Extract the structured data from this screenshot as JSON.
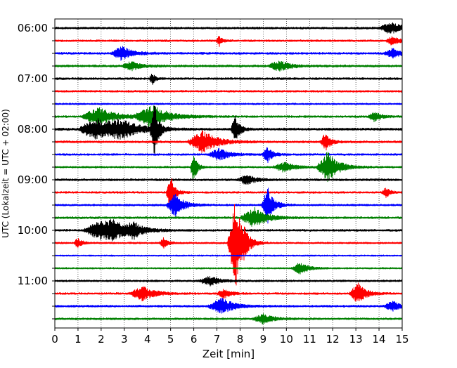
{
  "chart_data": {
    "type": "line",
    "subtype": "helicorder",
    "xlabel": "Zeit  [min]",
    "ylabel": "UTC (Lokalzeit = UTC + 02:00)",
    "xlim": [
      0,
      15
    ],
    "x_ticks": [
      0,
      1,
      2,
      3,
      4,
      5,
      6,
      7,
      8,
      9,
      10,
      11,
      12,
      13,
      14,
      15
    ],
    "x_tick_labels": [
      "0",
      "1",
      "2",
      "3",
      "4",
      "5",
      "6",
      "7",
      "8",
      "9",
      "10",
      "11",
      "12",
      "13",
      "14",
      "15"
    ],
    "grid": "vertical dotted lines at each minute",
    "y_tick_labels": [
      "06:00",
      "07:00",
      "08:00",
      "09:00",
      "10:00",
      "11:00"
    ],
    "line_interval_minutes": 15,
    "color_cycle": [
      "#000000",
      "#ff0000",
      "#0000ff",
      "#008000"
    ],
    "traces": [
      {
        "start": "06:00",
        "color": "#000000",
        "noise": 0.6,
        "events": [
          {
            "t": 14.5,
            "amp": 1.2,
            "dur": 0.5
          }
        ]
      },
      {
        "start": "06:15",
        "color": "#ff0000",
        "noise": 0.55,
        "events": [
          {
            "t": 7.1,
            "amp": 1.1,
            "dur": 0.15
          },
          {
            "t": 14.6,
            "amp": 1.0,
            "dur": 0.3
          }
        ]
      },
      {
        "start": "06:30",
        "color": "#0000ff",
        "noise": 0.6,
        "events": [
          {
            "t": 2.9,
            "amp": 1.4,
            "dur": 0.5
          },
          {
            "t": 14.6,
            "amp": 1.0,
            "dur": 0.4
          }
        ]
      },
      {
        "start": "06:45",
        "color": "#008000",
        "noise": 0.65,
        "events": [
          {
            "t": 3.3,
            "amp": 1.0,
            "dur": 0.4
          },
          {
            "t": 9.7,
            "amp": 1.0,
            "dur": 0.5
          }
        ]
      },
      {
        "start": "07:00",
        "color": "#000000",
        "noise": 0.6,
        "events": [
          {
            "t": 4.2,
            "amp": 1.4,
            "dur": 0.12
          }
        ]
      },
      {
        "start": "07:15",
        "color": "#ff0000",
        "noise": 0.55,
        "events": []
      },
      {
        "start": "07:30",
        "color": "#0000ff",
        "noise": 0.45,
        "events": []
      },
      {
        "start": "07:45",
        "color": "#008000",
        "noise": 0.6,
        "events": [
          {
            "t": 1.9,
            "amp": 1.8,
            "dur": 0.8
          },
          {
            "t": 4.2,
            "amp": 2.2,
            "dur": 0.8
          },
          {
            "t": 13.8,
            "amp": 1.0,
            "dur": 0.3
          }
        ]
      },
      {
        "start": "08:00",
        "color": "#000000",
        "noise": 0.7,
        "events": [
          {
            "t": 1.8,
            "amp": 2.2,
            "dur": 0.8
          },
          {
            "t": 2.9,
            "amp": 1.6,
            "dur": 0.9
          },
          {
            "t": 4.3,
            "amp": 5.0,
            "dur": 0.2
          },
          {
            "t": 7.8,
            "amp": 3.2,
            "dur": 0.2
          }
        ]
      },
      {
        "start": "08:15",
        "color": "#ff0000",
        "noise": 0.6,
        "events": [
          {
            "t": 6.4,
            "amp": 2.2,
            "dur": 0.7
          },
          {
            "t": 11.7,
            "amp": 1.8,
            "dur": 0.25
          }
        ]
      },
      {
        "start": "08:30",
        "color": "#0000ff",
        "noise": 0.55,
        "events": [
          {
            "t": 7.1,
            "amp": 1.2,
            "dur": 0.5
          },
          {
            "t": 9.2,
            "amp": 1.5,
            "dur": 0.25
          }
        ]
      },
      {
        "start": "08:45",
        "color": "#008000",
        "noise": 0.55,
        "events": [
          {
            "t": 6.0,
            "amp": 3.5,
            "dur": 0.15
          },
          {
            "t": 9.9,
            "amp": 1.0,
            "dur": 0.5
          },
          {
            "t": 11.8,
            "amp": 3.2,
            "dur": 0.5
          }
        ]
      },
      {
        "start": "09:00",
        "color": "#000000",
        "noise": 0.6,
        "events": [
          {
            "t": 8.3,
            "amp": 1.0,
            "dur": 0.4
          }
        ]
      },
      {
        "start": "09:15",
        "color": "#ff0000",
        "noise": 0.55,
        "events": [
          {
            "t": 5.0,
            "amp": 3.8,
            "dur": 0.2
          },
          {
            "t": 14.3,
            "amp": 1.0,
            "dur": 0.2
          }
        ]
      },
      {
        "start": "09:30",
        "color": "#0000ff",
        "noise": 0.55,
        "events": [
          {
            "t": 5.2,
            "amp": 2.5,
            "dur": 0.4
          },
          {
            "t": 9.2,
            "amp": 3.5,
            "dur": 0.3
          }
        ]
      },
      {
        "start": "09:45",
        "color": "#008000",
        "noise": 0.6,
        "events": [
          {
            "t": 8.6,
            "amp": 2.0,
            "dur": 0.6
          }
        ]
      },
      {
        "start": "10:00",
        "color": "#000000",
        "noise": 0.6,
        "events": [
          {
            "t": 1.8,
            "amp": 1.4,
            "dur": 0.6
          },
          {
            "t": 2.5,
            "amp": 1.8,
            "dur": 0.9
          },
          {
            "t": 3.4,
            "amp": 1.2,
            "dur": 0.4
          }
        ]
      },
      {
        "start": "10:15",
        "color": "#ff0000",
        "noise": 0.5,
        "events": [
          {
            "t": 1.0,
            "amp": 1.0,
            "dur": 0.2
          },
          {
            "t": 4.7,
            "amp": 1.0,
            "dur": 0.2
          },
          {
            "t": 7.8,
            "amp": 9.5,
            "dur": 0.35
          },
          {
            "t": 8.2,
            "amp": 1.6,
            "dur": 0.15
          }
        ]
      },
      {
        "start": "10:30",
        "color": "#0000ff",
        "noise": 0.4,
        "events": []
      },
      {
        "start": "10:45",
        "color": "#008000",
        "noise": 0.45,
        "events": [
          {
            "t": 10.6,
            "amp": 1.2,
            "dur": 0.4
          }
        ]
      },
      {
        "start": "11:00",
        "color": "#000000",
        "noise": 0.55,
        "events": [
          {
            "t": 6.7,
            "amp": 0.9,
            "dur": 0.5
          }
        ]
      },
      {
        "start": "11:15",
        "color": "#ff0000",
        "noise": 0.55,
        "events": [
          {
            "t": 3.8,
            "amp": 1.4,
            "dur": 0.6
          },
          {
            "t": 7.3,
            "amp": 1.0,
            "dur": 0.3
          },
          {
            "t": 13.1,
            "amp": 2.0,
            "dur": 0.4
          }
        ]
      },
      {
        "start": "11:30",
        "color": "#0000ff",
        "noise": 0.6,
        "events": [
          {
            "t": 7.2,
            "amp": 1.6,
            "dur": 0.6
          },
          {
            "t": 14.6,
            "amp": 1.0,
            "dur": 0.4
          }
        ]
      },
      {
        "start": "11:45",
        "color": "#008000",
        "noise": 0.55,
        "events": [
          {
            "t": 9.0,
            "amp": 1.0,
            "dur": 0.5
          }
        ]
      }
    ]
  }
}
